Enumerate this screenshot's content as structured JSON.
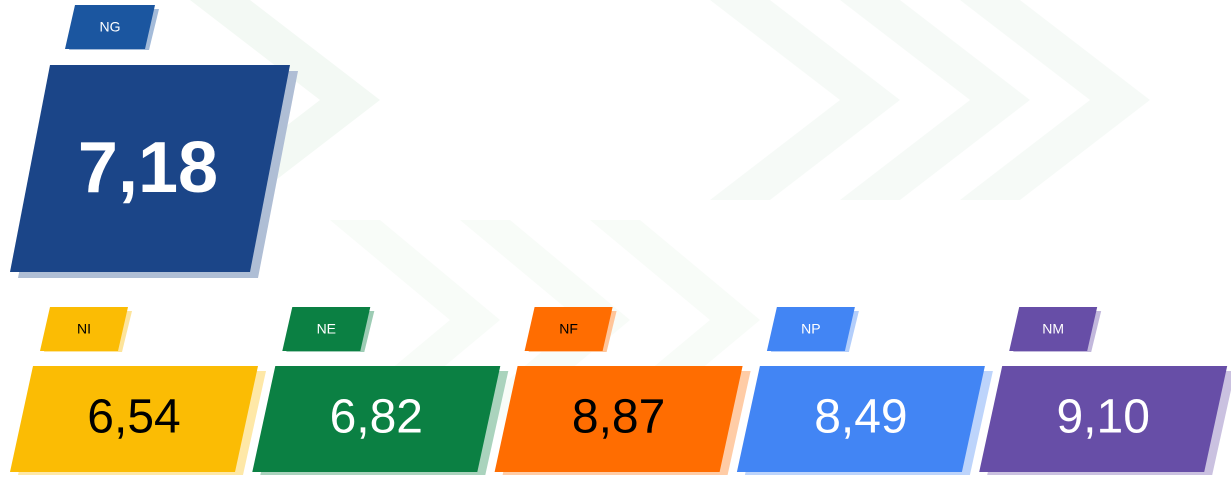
{
  "main": {
    "label": "NG",
    "value": "7,18",
    "color": "#1b4588",
    "tag_color": "#1b56a0",
    "text_color": "#ffffff"
  },
  "cards": [
    {
      "label": "NI",
      "value": "6,54",
      "color": "#fbbc04",
      "text_color": "#000000",
      "tag_text_color": "#000000"
    },
    {
      "label": "NE",
      "value": "6,82",
      "color": "#0b8043",
      "text_color": "#ffffff",
      "tag_text_color": "#ffffff"
    },
    {
      "label": "NF",
      "value": "8,87",
      "color": "#ff6d01",
      "text_color": "#000000",
      "tag_text_color": "#000000"
    },
    {
      "label": "NP",
      "value": "8,49",
      "color": "#4285f4",
      "text_color": "#ffffff",
      "tag_text_color": "#ffffff"
    },
    {
      "label": "NM",
      "value": "9,10",
      "color": "#674ea7",
      "text_color": "#ffffff",
      "tag_text_color": "#ffffff"
    }
  ]
}
